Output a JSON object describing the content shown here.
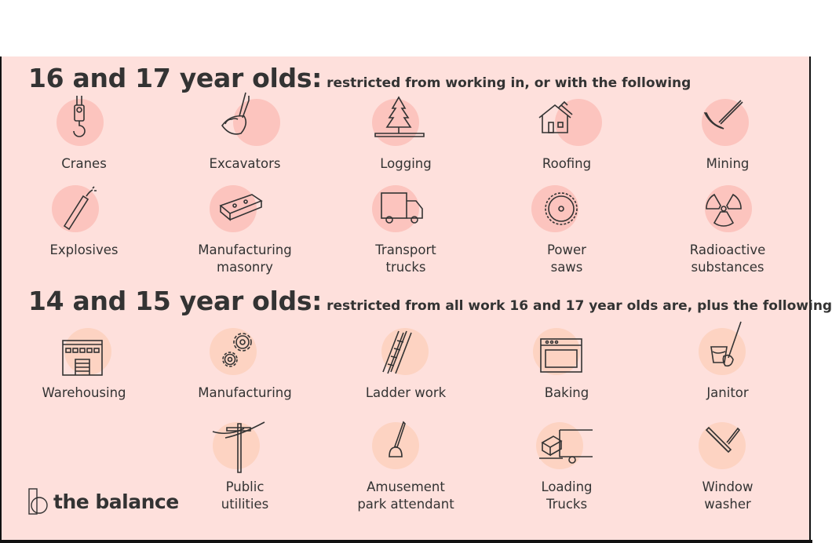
{
  "colors": {
    "background": "#fee0dc",
    "circle_16_17": "#fcc4be",
    "circle_14_15": "#fdd3c2",
    "text": "#333333"
  },
  "section1": {
    "title": "16 and 17 year olds:",
    "subtitle": "restricted from working in, or with the following",
    "items": [
      {
        "label": "Cranes",
        "icon": "crane-hook-icon"
      },
      {
        "label": "Excavators",
        "icon": "excavator-bucket-icon"
      },
      {
        "label": "Logging",
        "icon": "tree-icon"
      },
      {
        "label": "Roofing",
        "icon": "house-hammer-icon"
      },
      {
        "label": "Mining",
        "icon": "pickaxe-icon"
      },
      {
        "label": "Explosives",
        "icon": "dynamite-icon"
      },
      {
        "label1": "Manufacturing",
        "label2": "masonry",
        "icon": "brick-icon"
      },
      {
        "label1": "Transport",
        "label2": "trucks",
        "icon": "truck-icon"
      },
      {
        "label1": "Power",
        "label2": "saws",
        "icon": "saw-blade-icon"
      },
      {
        "label1": "Radioactive",
        "label2": "substances",
        "icon": "radiation-icon"
      }
    ]
  },
  "section2": {
    "title": "14 and 15 year olds:",
    "subtitle": "restricted from all work 16 and 17 year olds are, plus the following",
    "items": [
      {
        "label": "Warehousing",
        "icon": "warehouse-icon"
      },
      {
        "label": "Manufacturing",
        "icon": "gears-icon"
      },
      {
        "label": "Ladder work",
        "icon": "ladder-icon"
      },
      {
        "label": "Baking",
        "icon": "oven-icon"
      },
      {
        "label": "Janitor",
        "icon": "mop-bucket-icon"
      },
      {
        "label1": "Public",
        "label2": "utilities",
        "icon": "utility-pole-icon"
      },
      {
        "label1": "Amusement",
        "label2": "park attendant",
        "icon": "lever-icon"
      },
      {
        "label1": "Loading",
        "label2": "Trucks",
        "icon": "loading-truck-icon"
      },
      {
        "label1": "Window",
        "label2": "washer",
        "icon": "squeegee-icon"
      }
    ]
  },
  "logo": {
    "text": "the balance"
  }
}
